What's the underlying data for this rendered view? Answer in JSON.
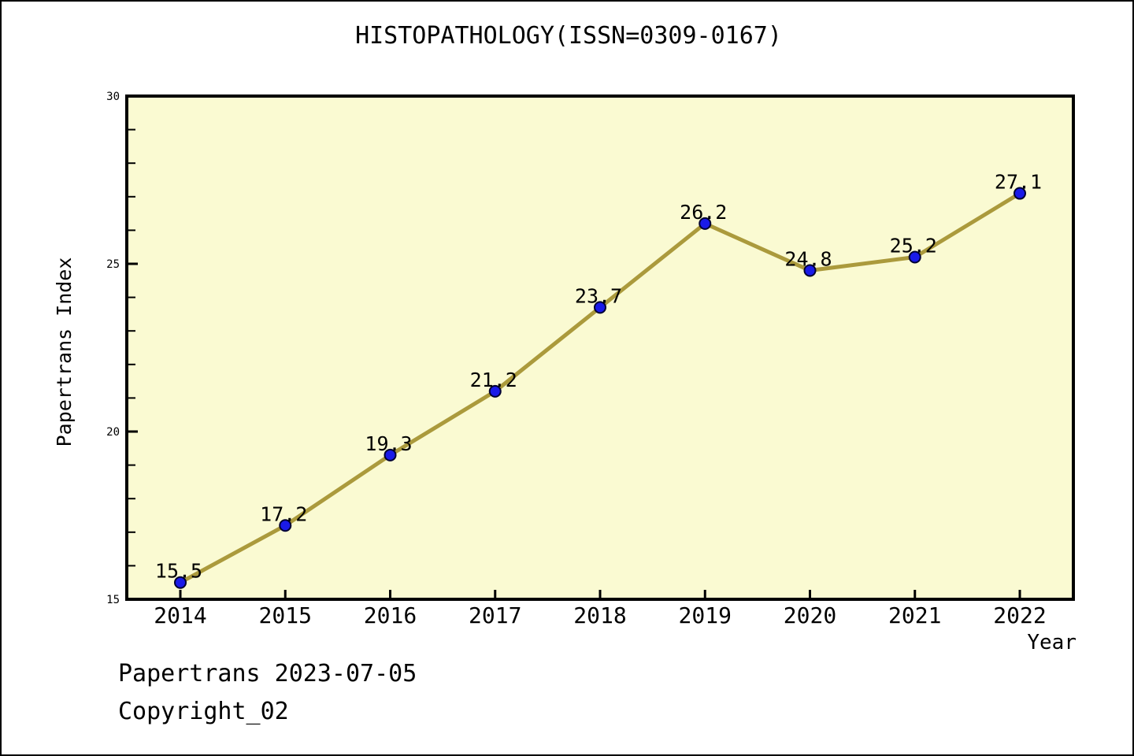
{
  "page": {
    "background": "#ffffff",
    "border_color": "#000000"
  },
  "chart_data": {
    "type": "line",
    "title": "HISTOPATHOLOGY(ISSN=0309-0167)",
    "xlabel": "Year",
    "ylabel": "Papertrans Index",
    "x": [
      2014,
      2015,
      2016,
      2017,
      2018,
      2019,
      2020,
      2021,
      2022
    ],
    "series": [
      {
        "name": "Papertrans Index",
        "values": [
          15.5,
          17.2,
          19.3,
          21.2,
          23.7,
          26.2,
          24.8,
          25.2,
          27.1
        ]
      }
    ],
    "point_labels": [
      "15.5",
      "17.2",
      "19.3",
      "21.2",
      "23.7",
      "26.2",
      "24.8",
      "25.2",
      "27.1"
    ],
    "ylim": [
      15,
      30
    ],
    "yticks": [
      15,
      20,
      25,
      30
    ],
    "y_minor_step": 1,
    "grid": false,
    "legend": "none",
    "colors": {
      "line": "#AB9A3C",
      "marker_fill": "#1A1AE8",
      "marker_edge": "#000033",
      "plot_background": "#FAFAD2",
      "axis": "#000000",
      "text": "#000000"
    }
  },
  "footer": {
    "line1": "Papertrans 2023-07-05",
    "line2": "Copyright_02"
  }
}
